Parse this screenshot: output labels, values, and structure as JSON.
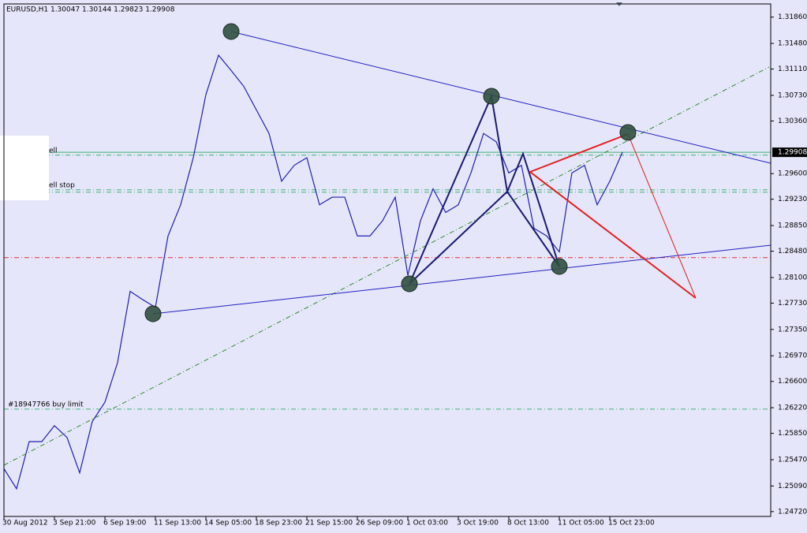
{
  "chart_data": {
    "type": "line",
    "title": "EURUSD,H1  1.30047 1.30144 1.29823 1.29908",
    "categories": [
      "30 Aug 2012",
      null,
      null,
      null,
      "3 Sep 21:00",
      null,
      null,
      null,
      "6 Sep 19:00",
      null,
      null,
      null,
      "11 Sep 13:00",
      null,
      null,
      null,
      "14 Sep 05:00",
      null,
      null,
      null,
      "18 Sep 23:00",
      null,
      null,
      null,
      "21 Sep 15:00",
      null,
      null,
      null,
      "26 Sep 09:00",
      null,
      null,
      null,
      "1 Oct 03:00",
      null,
      null,
      null,
      "3 Oct 19:00",
      null,
      null,
      null,
      "8 Oct 13:00",
      null,
      null,
      null,
      "11 Oct 05:00",
      null,
      null,
      null,
      "15 Oct 23:00",
      null,
      null,
      null,
      null,
      null,
      null,
      null,
      null,
      null,
      null,
      null,
      null
    ],
    "series": [
      {
        "name": "EURUSD",
        "color": "#1f1fb0",
        "values": [
          1.2534,
          1.2505,
          1.2573,
          1.2573,
          1.2596,
          1.2579,
          1.2528,
          1.2602,
          1.263,
          1.2687,
          1.279,
          1.2778,
          1.2767,
          1.287,
          1.2915,
          1.2983,
          1.3074,
          1.3131,
          1.3109,
          1.3086,
          1.3052,
          1.3018,
          1.2949,
          1.2972,
          1.2983,
          1.2915,
          1.2926,
          1.2926,
          1.287,
          1.287,
          1.2892,
          1.2926,
          1.2813,
          1.2892,
          1.2938,
          1.2904,
          1.2915,
          1.2961,
          1.3018,
          1.3006,
          1.2961,
          1.2972,
          1.2881,
          1.287,
          1.2847,
          1.2961,
          1.2972,
          1.2915,
          1.2949,
          1.29908,
          null,
          null,
          null,
          null,
          null,
          null,
          null,
          null,
          null,
          null,
          null
        ]
      }
    ],
    "ylim": [
      1.2465,
      1.3205
    ],
    "yticks": [
      {
        "value": 1.2472,
        "label": "1.24720"
      },
      {
        "value": 1.2509,
        "label": "1.25090"
      },
      {
        "value": 1.2547,
        "label": "1.25470"
      },
      {
        "value": 1.2585,
        "label": "1.25850"
      },
      {
        "value": 1.2622,
        "label": "1.26220"
      },
      {
        "value": 1.266,
        "label": "1.26600"
      },
      {
        "value": 1.2697,
        "label": "1.26970"
      },
      {
        "value": 1.2735,
        "label": "1.27350"
      },
      {
        "value": 1.2773,
        "label": "1.27730"
      },
      {
        "value": 1.281,
        "label": "1.28100"
      },
      {
        "value": 1.2848,
        "label": "1.28480"
      },
      {
        "value": 1.2885,
        "label": "1.28850"
      },
      {
        "value": 1.2923,
        "label": "1.29230"
      },
      {
        "value": 1.296,
        "label": "1.29600"
      },
      {
        "value": 1.3036,
        "label": "1.30360"
      },
      {
        "value": 1.3073,
        "label": "1.30730"
      },
      {
        "value": 1.3111,
        "label": "1.31110"
      },
      {
        "value": 1.3148,
        "label": "1.31480"
      },
      {
        "value": 1.3186,
        "label": "1.31860"
      }
    ],
    "last_price": {
      "value": 1.29908,
      "label": "1.29908"
    },
    "levels": [
      {
        "value": 1.29908,
        "color": "#3cb371",
        "style": "solid"
      },
      {
        "value": 1.29867,
        "color": "#3cb371",
        "style": "dashdot",
        "label": "ell"
      },
      {
        "value": 1.29366,
        "color": "#3cb371",
        "style": "dashdot",
        "label": "ell stop"
      },
      {
        "value": 1.29332,
        "color": "#3cb371",
        "style": "dashdot"
      },
      {
        "value": 1.28387,
        "color": "#e03030",
        "style": "dashdot"
      },
      {
        "value": 1.262,
        "color": "#3cb371",
        "style": "dashdot",
        "label": "#18947766 buy limit"
      }
    ],
    "grid": false
  }
}
